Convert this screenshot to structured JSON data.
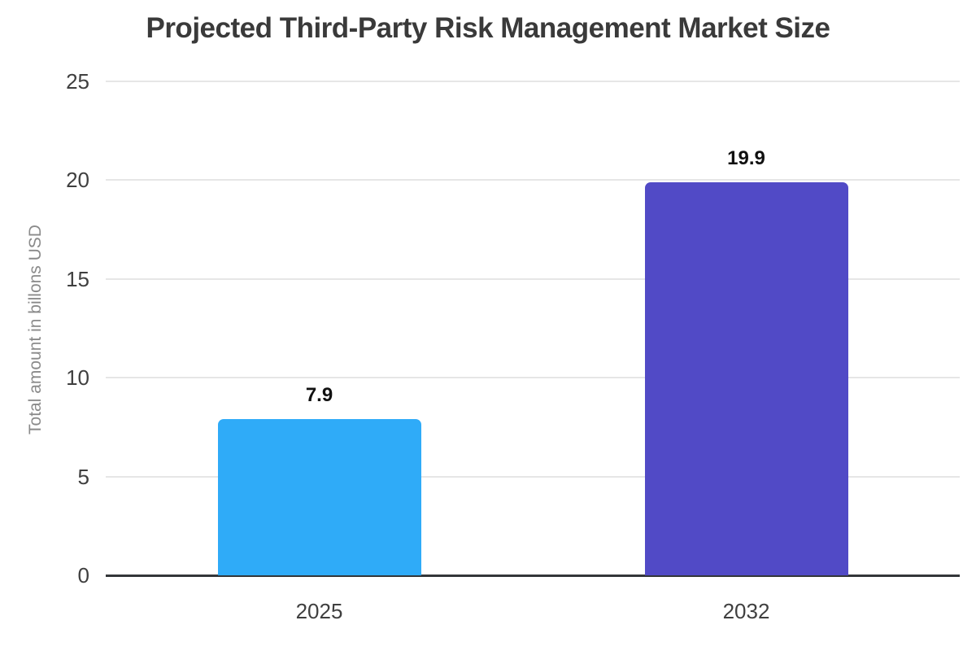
{
  "chart_data": {
    "type": "bar",
    "title": "Projected Third-Party Risk Management Market Size",
    "xlabel": "",
    "ylabel": "Total amount in billons USD",
    "categories": [
      "2025",
      "2032"
    ],
    "values": [
      7.9,
      19.9
    ],
    "value_labels": [
      "7.9",
      "19.9"
    ],
    "bar_colors": [
      "#2fabf8",
      "#514ac6"
    ],
    "yticks": [
      0,
      5,
      10,
      15,
      20,
      25
    ],
    "ylim": [
      0,
      25
    ],
    "grid": "horizontal-only",
    "legend": "none",
    "background_color": "#ffffff",
    "title_color": "#3a3a3a",
    "tick_label_color": "#3f3f3f",
    "ylabel_color": "#8a8a8a",
    "value_label_color": "#111111",
    "gridline_color": "#e6e6e6",
    "axis_line_color": "#333639"
  }
}
